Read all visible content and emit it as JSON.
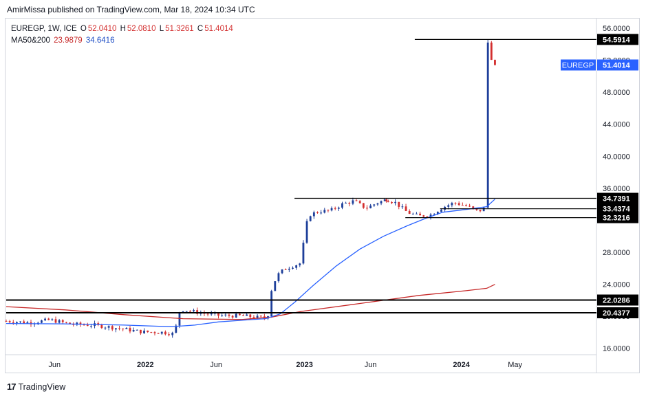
{
  "header": {
    "published_text": "AmirMissa published on TradingView.com, Mar 18, 2024 10:34 UTC"
  },
  "legend": {
    "symbol_line": "EUREGP, 1W, ICE",
    "o_label": "O",
    "o_value": "52.0410",
    "h_label": "H",
    "h_value": "52.0810",
    "l_label": "L",
    "l_value": "51.3261",
    "c_label": "C",
    "c_value": "51.4014",
    "ma_label": "MA50&200",
    "ma50_value": "23.9879",
    "ma200_value": "34.6416"
  },
  "footer": {
    "brand": "TradingView"
  },
  "colors": {
    "up": "#1e3f9a",
    "down": "#d32f2f",
    "ma50": "#c62828",
    "ma200": "#2962ff",
    "price_tag": "#2962ff",
    "level_tag": "#000000"
  },
  "chart_data": {
    "type": "candlestick",
    "symbol": "EUREGP",
    "interval": "1W",
    "exchange": "ICE",
    "last_price_label": "EUREGP",
    "last_price": "51.4014",
    "ylim": [
      15.2,
      57.2
    ],
    "y_ticks": [
      "56.0000",
      "52.0000",
      "48.0000",
      "44.0000",
      "40.0000",
      "36.0000",
      "32.0000",
      "28.0000",
      "24.0000",
      "20.0000",
      "16.0000"
    ],
    "x_range": [
      0,
      100
    ],
    "x_ticks": [
      {
        "label": "Jun",
        "x": 8.2
      },
      {
        "label": "2022",
        "x": 23.6
      },
      {
        "label": "Jun",
        "x": 35.6
      },
      {
        "label": "2023",
        "x": 50.6
      },
      {
        "label": "Jun",
        "x": 61.8
      },
      {
        "label": "2024",
        "x": 77.2
      },
      {
        "label": "May",
        "x": 86.3
      }
    ],
    "horizontal_levels": [
      {
        "value": 54.5914,
        "label": "54.5914",
        "x_start": 69.3
      },
      {
        "value": 34.7391,
        "label": "34.7391",
        "x_start": 48.9
      },
      {
        "value": 33.4374,
        "label": "33.4374",
        "x_start": 73.6
      },
      {
        "value": 32.3216,
        "label": "32.3216",
        "x_start": 67.7
      },
      {
        "value": 22.0286,
        "label": "22.0286",
        "x_start": 0
      },
      {
        "value": 20.4377,
        "label": "20.4377",
        "x_start": 0
      }
    ],
    "ohlc_anchors": [
      {
        "x": 0.0,
        "close": 19.4
      },
      {
        "x": 4.0,
        "close": 19.2
      },
      {
        "x": 7.5,
        "close": 19.55
      },
      {
        "x": 11.0,
        "close": 19.0
      },
      {
        "x": 15.0,
        "close": 18.9
      },
      {
        "x": 19.0,
        "close": 18.5
      },
      {
        "x": 23.0,
        "close": 18.05
      },
      {
        "x": 26.5,
        "close": 18.0
      },
      {
        "x": 28.5,
        "close": 17.8
      },
      {
        "x": 29.5,
        "close": 20.9
      },
      {
        "x": 33.0,
        "close": 20.4
      },
      {
        "x": 36.0,
        "close": 20.1
      },
      {
        "x": 40.0,
        "close": 20.05
      },
      {
        "x": 43.5,
        "close": 19.8
      },
      {
        "x": 44.3,
        "close": 19.7
      },
      {
        "x": 45.1,
        "close": 23.8
      },
      {
        "x": 46.3,
        "close": 25.4
      },
      {
        "x": 47.5,
        "close": 26.0
      },
      {
        "x": 49.8,
        "close": 26.6
      },
      {
        "x": 50.6,
        "close": 29.8
      },
      {
        "x": 51.2,
        "close": 32.6
      },
      {
        "x": 53.0,
        "close": 33.1
      },
      {
        "x": 55.0,
        "close": 33.2
      },
      {
        "x": 57.0,
        "close": 34.0
      },
      {
        "x": 59.0,
        "close": 34.4
      },
      {
        "x": 61.0,
        "close": 33.5
      },
      {
        "x": 63.0,
        "close": 34.2
      },
      {
        "x": 64.5,
        "close": 34.6
      },
      {
        "x": 66.0,
        "close": 34.2
      },
      {
        "x": 68.0,
        "close": 33.0
      },
      {
        "x": 70.0,
        "close": 32.5
      },
      {
        "x": 72.0,
        "close": 32.7
      },
      {
        "x": 74.0,
        "close": 33.6
      },
      {
        "x": 76.0,
        "close": 34.2
      },
      {
        "x": 78.0,
        "close": 33.8
      },
      {
        "x": 80.0,
        "close": 33.1
      },
      {
        "x": 81.1,
        "close": 33.5
      },
      {
        "x": 81.7,
        "close": 54.2
      },
      {
        "x": 82.3,
        "close": 52.04
      },
      {
        "x": 82.9,
        "close": 51.4
      }
    ],
    "series": [
      {
        "name": "MA50",
        "points": [
          [
            0,
            21.2
          ],
          [
            10,
            20.8
          ],
          [
            20,
            20.2
          ],
          [
            30,
            19.7
          ],
          [
            40,
            19.6
          ],
          [
            45,
            19.9
          ],
          [
            50,
            20.6
          ],
          [
            60,
            21.6
          ],
          [
            70,
            22.6
          ],
          [
            78,
            23.2
          ],
          [
            81.5,
            23.5
          ],
          [
            82.9,
            23.99
          ]
        ]
      },
      {
        "name": "MA200",
        "points": [
          [
            0,
            19.1
          ],
          [
            10,
            19.05
          ],
          [
            20,
            18.9
          ],
          [
            28,
            18.7
          ],
          [
            32,
            18.9
          ],
          [
            36,
            19.3
          ],
          [
            40,
            19.5
          ],
          [
            44,
            19.7
          ],
          [
            46.5,
            20.3
          ],
          [
            49,
            21.8
          ],
          [
            52,
            23.8
          ],
          [
            56,
            26.3
          ],
          [
            60,
            28.4
          ],
          [
            64,
            30.0
          ],
          [
            68,
            31.3
          ],
          [
            71,
            32.2
          ],
          [
            74,
            33.0
          ],
          [
            78,
            33.35
          ],
          [
            81.5,
            33.7
          ],
          [
            82.9,
            34.64
          ]
        ]
      }
    ],
    "yaxis_side": "right",
    "grid": false
  }
}
